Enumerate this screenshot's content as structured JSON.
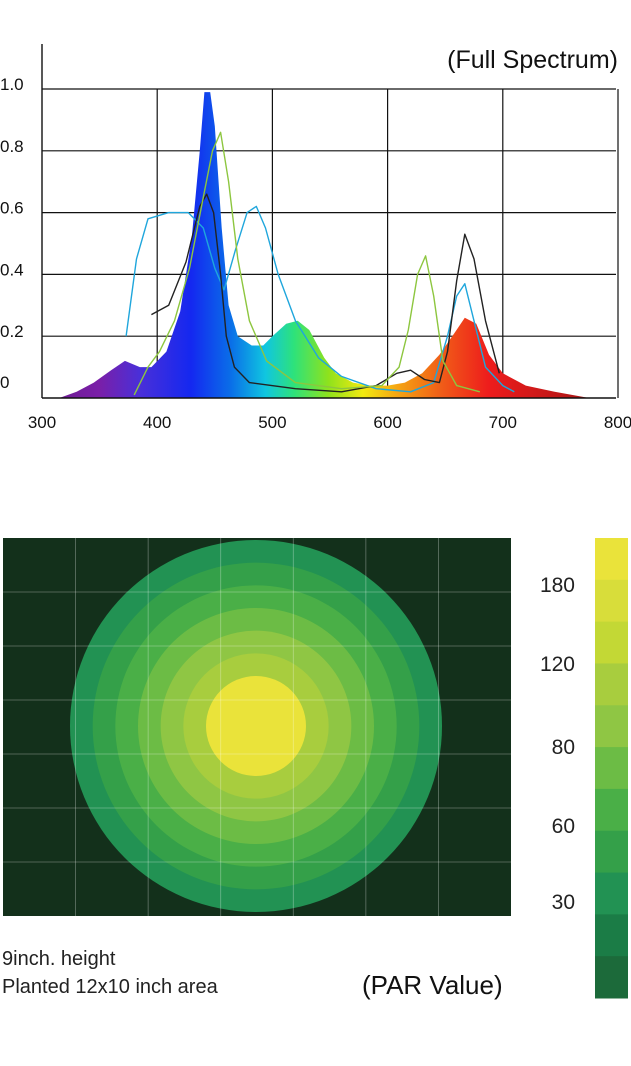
{
  "chart_data": [
    {
      "type": "area",
      "title": "(Full Spectrum)",
      "xlabel": "",
      "ylabel": "",
      "xlim": [
        300,
        800
      ],
      "ylim": [
        0,
        1.0
      ],
      "x_ticks": [
        "300",
        "400",
        "500",
        "600",
        "700",
        "800"
      ],
      "y_ticks": [
        "0",
        "0.2",
        "0.4",
        "0.6",
        "0.8",
        "1.0"
      ],
      "grid": true,
      "series": [
        {
          "color": "spectral",
          "fill": true,
          "points": [
            [
              315,
              0
            ],
            [
              330,
              0.02
            ],
            [
              345,
              0.05
            ],
            [
              360,
              0.09
            ],
            [
              372,
              0.12
            ],
            [
              385,
              0.1
            ],
            [
              395,
              0.1
            ],
            [
              408,
              0.15
            ],
            [
              420,
              0.28
            ],
            [
              430,
              0.52
            ],
            [
              437,
              0.8
            ],
            [
              441,
              0.99
            ],
            [
              446,
              0.99
            ],
            [
              450,
              0.88
            ],
            [
              456,
              0.55
            ],
            [
              462,
              0.3
            ],
            [
              470,
              0.2
            ],
            [
              482,
              0.17
            ],
            [
              492,
              0.17
            ],
            [
              500,
              0.2
            ],
            [
              512,
              0.24
            ],
            [
              522,
              0.25
            ],
            [
              532,
              0.22
            ],
            [
              545,
              0.13
            ],
            [
              555,
              0.08
            ],
            [
              570,
              0.05
            ],
            [
              585,
              0.04
            ],
            [
              600,
              0.04
            ],
            [
              615,
              0.05
            ],
            [
              630,
              0.08
            ],
            [
              645,
              0.14
            ],
            [
              658,
              0.21
            ],
            [
              667,
              0.26
            ],
            [
              677,
              0.24
            ],
            [
              688,
              0.14
            ],
            [
              700,
              0.08
            ],
            [
              720,
              0.04
            ],
            [
              745,
              0.02
            ],
            [
              775,
              0
            ]
          ]
        },
        {
          "color": "#1fa6dc",
          "fill": false,
          "points": [
            [
              373,
              0.2
            ],
            [
              382,
              0.45
            ],
            [
              392,
              0.58
            ],
            [
              410,
              0.6
            ],
            [
              427,
              0.6
            ],
            [
              440,
              0.55
            ],
            [
              450,
              0.42
            ],
            [
              458,
              0.35
            ],
            [
              468,
              0.48
            ],
            [
              478,
              0.6
            ],
            [
              486,
              0.62
            ],
            [
              494,
              0.55
            ],
            [
              505,
              0.4
            ],
            [
              520,
              0.25
            ],
            [
              540,
              0.13
            ],
            [
              560,
              0.07
            ],
            [
              590,
              0.03
            ],
            [
              620,
              0.02
            ],
            [
              640,
              0.05
            ],
            [
              652,
              0.2
            ],
            [
              660,
              0.33
            ],
            [
              667,
              0.37
            ],
            [
              675,
              0.25
            ],
            [
              685,
              0.1
            ],
            [
              700,
              0.04
            ],
            [
              710,
              0.02
            ]
          ]
        },
        {
          "color": "#222222",
          "fill": false,
          "points": [
            [
              395,
              0.27
            ],
            [
              410,
              0.3
            ],
            [
              425,
              0.44
            ],
            [
              437,
              0.62
            ],
            [
              443,
              0.66
            ],
            [
              449,
              0.6
            ],
            [
              455,
              0.4
            ],
            [
              460,
              0.2
            ],
            [
              467,
              0.1
            ],
            [
              480,
              0.05
            ],
            [
              520,
              0.03
            ],
            [
              560,
              0.02
            ],
            [
              590,
              0.04
            ],
            [
              608,
              0.08
            ],
            [
              620,
              0.09
            ],
            [
              632,
              0.06
            ],
            [
              645,
              0.05
            ],
            [
              652,
              0.15
            ],
            [
              660,
              0.38
            ],
            [
              667,
              0.53
            ],
            [
              675,
              0.45
            ],
            [
              685,
              0.25
            ],
            [
              697,
              0.08
            ]
          ]
        },
        {
          "color": "#8dc63f",
          "fill": false,
          "points": [
            [
              380,
              0.01
            ],
            [
              392,
              0.1
            ],
            [
              402,
              0.15
            ],
            [
              415,
              0.25
            ],
            [
              428,
              0.42
            ],
            [
              440,
              0.65
            ],
            [
              448,
              0.8
            ],
            [
              455,
              0.86
            ],
            [
              462,
              0.7
            ],
            [
              470,
              0.45
            ],
            [
              480,
              0.25
            ],
            [
              495,
              0.12
            ],
            [
              520,
              0.05
            ],
            [
              560,
              0.03
            ],
            [
              595,
              0.04
            ],
            [
              610,
              0.1
            ],
            [
              618,
              0.22
            ],
            [
              626,
              0.4
            ],
            [
              633,
              0.46
            ],
            [
              640,
              0.33
            ],
            [
              648,
              0.12
            ],
            [
              660,
              0.04
            ],
            [
              680,
              0.02
            ]
          ]
        }
      ]
    },
    {
      "type": "heatmap",
      "title": "(PAR Value)",
      "legend_ticks": [
        "180",
        "120",
        "80",
        "60",
        "30"
      ],
      "legend_colors": [
        "#eae33a",
        "#d8dd3a",
        "#c3d835",
        "#a8cd3e",
        "#8fc644",
        "#6cbc45",
        "#4aaf47",
        "#34a049",
        "#229253",
        "#1b7c46",
        "#1c6a3a"
      ],
      "levels_inner_to_outer": [
        {
          "color": "#eae33a"
        },
        {
          "color": "#a8cd3e"
        },
        {
          "color": "#8fc644"
        },
        {
          "color": "#6cbc45"
        },
        {
          "color": "#4aaf47"
        },
        {
          "color": "#34a049"
        },
        {
          "color": "#229253"
        }
      ],
      "background_color": "#13301b"
    }
  ],
  "notes": {
    "line1": "9inch. height",
    "line2": "Planted 12x10 inch area"
  }
}
